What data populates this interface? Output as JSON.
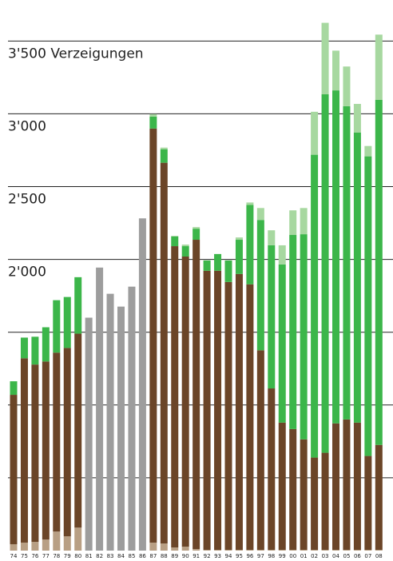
{
  "chart_data": {
    "type": "stacked-bar",
    "categories": [
      "74",
      "75",
      "76",
      "77",
      "78",
      "79",
      "80",
      "81",
      "82",
      "83",
      "84",
      "85",
      "86",
      "87",
      "88",
      "89",
      "90",
      "91",
      "92",
      "93",
      "94",
      "95",
      "96",
      "97",
      "98",
      "99",
      "00",
      "01",
      "02",
      "03",
      "04",
      "05",
      "06",
      "07",
      "08"
    ],
    "series": [
      {
        "color": "#b89f84",
        "values": [
          44,
          55,
          60,
          76,
          131,
          98,
          158,
          null,
          null,
          null,
          null,
          null,
          null,
          55,
          49,
          22,
          27,
          11,
          5,
          5,
          5,
          5,
          5,
          5,
          5,
          5,
          5,
          5,
          5,
          5,
          5,
          5,
          5,
          5,
          5
        ]
      },
      {
        "color": "#6b4528",
        "values": [
          1026,
          1266,
          1218,
          1223,
          1229,
          1294,
          1332,
          null,
          null,
          null,
          null,
          null,
          null,
          2844,
          2615,
          2069,
          1993,
          2124,
          1917,
          1917,
          1840,
          1895,
          1824,
          1371,
          1109,
          874,
          830,
          759,
          634,
          667,
          869,
          896,
          874,
          645,
          721
        ]
      },
      {
        "color": "#9d9d9d",
        "values": [
          null,
          null,
          null,
          null,
          null,
          null,
          null,
          1600,
          1944,
          1764,
          1676,
          1813,
          2282,
          null,
          null,
          null,
          null,
          null,
          null,
          null,
          null,
          null,
          null,
          null,
          null,
          null,
          null,
          null,
          null,
          null,
          null,
          null,
          null,
          null,
          null
        ]
      },
      {
        "color": "#3cb64a",
        "values": [
          93,
          142,
          191,
          235,
          360,
          350,
          388,
          null,
          null,
          null,
          null,
          null,
          null,
          82,
          93,
          66,
          71,
          76,
          71,
          115,
          148,
          235,
          546,
          895,
          983,
          1087,
          1333,
          1409,
          2080,
          2462,
          2287,
          2151,
          1993,
          2058,
          2370
        ]
      },
      {
        "color": "#a7d8a0",
        "values": [
          null,
          null,
          null,
          null,
          null,
          null,
          null,
          null,
          null,
          null,
          null,
          null,
          null,
          17,
          11,
          5,
          11,
          11,
          null,
          null,
          null,
          16,
          16,
          82,
          103,
          131,
          169,
          180,
          295,
          491,
          273,
          273,
          196,
          71,
          448
        ]
      }
    ],
    "ylim": [
      0,
      3650
    ],
    "yticks": [
      {
        "value": 500,
        "label": null
      },
      {
        "value": 1000,
        "label": null
      },
      {
        "value": 1500,
        "label": null
      },
      {
        "value": 2000,
        "label": "2'000"
      },
      {
        "value": 2500,
        "label": "2'500"
      },
      {
        "value": 3000,
        "label": "3'000"
      },
      {
        "value": 3500,
        "label": "3'500 Verzeigungen"
      }
    ],
    "grid": true
  }
}
